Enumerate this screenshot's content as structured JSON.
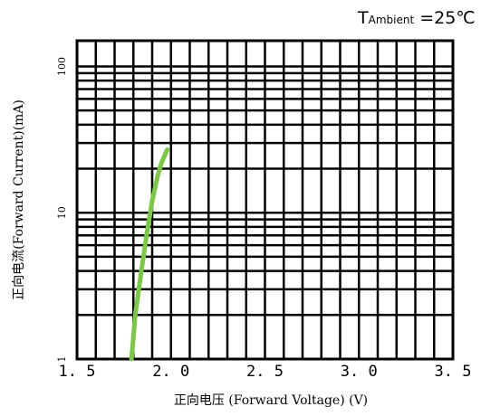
{
  "chart_data": {
    "type": "line",
    "condition": {
      "prefix": "T",
      "subscript": "Ambient",
      "suffix": " =25℃"
    },
    "xlabel": "正向电压 (Forward  Voltage) (V)",
    "ylabel": "正向电流(Forward  Current)(mA)",
    "x_ticks": [
      "1. 5",
      "2. 0",
      "2. 5",
      "3. 0",
      "3. 5"
    ],
    "y_ticks": [
      "1",
      "10",
      "100"
    ],
    "xlim": [
      1.5,
      3.5
    ],
    "ylim": [
      1,
      150
    ],
    "y_scale": "log",
    "x_minor_step": 0.1,
    "grid": true,
    "curve_color": "#7ac943",
    "series": [
      {
        "x": [
          1.79,
          1.81,
          1.84,
          1.87,
          1.9,
          1.93,
          1.95,
          1.98
        ],
        "values": [
          1,
          2,
          3.8,
          7,
          12,
          18,
          22,
          27
        ]
      }
    ]
  }
}
